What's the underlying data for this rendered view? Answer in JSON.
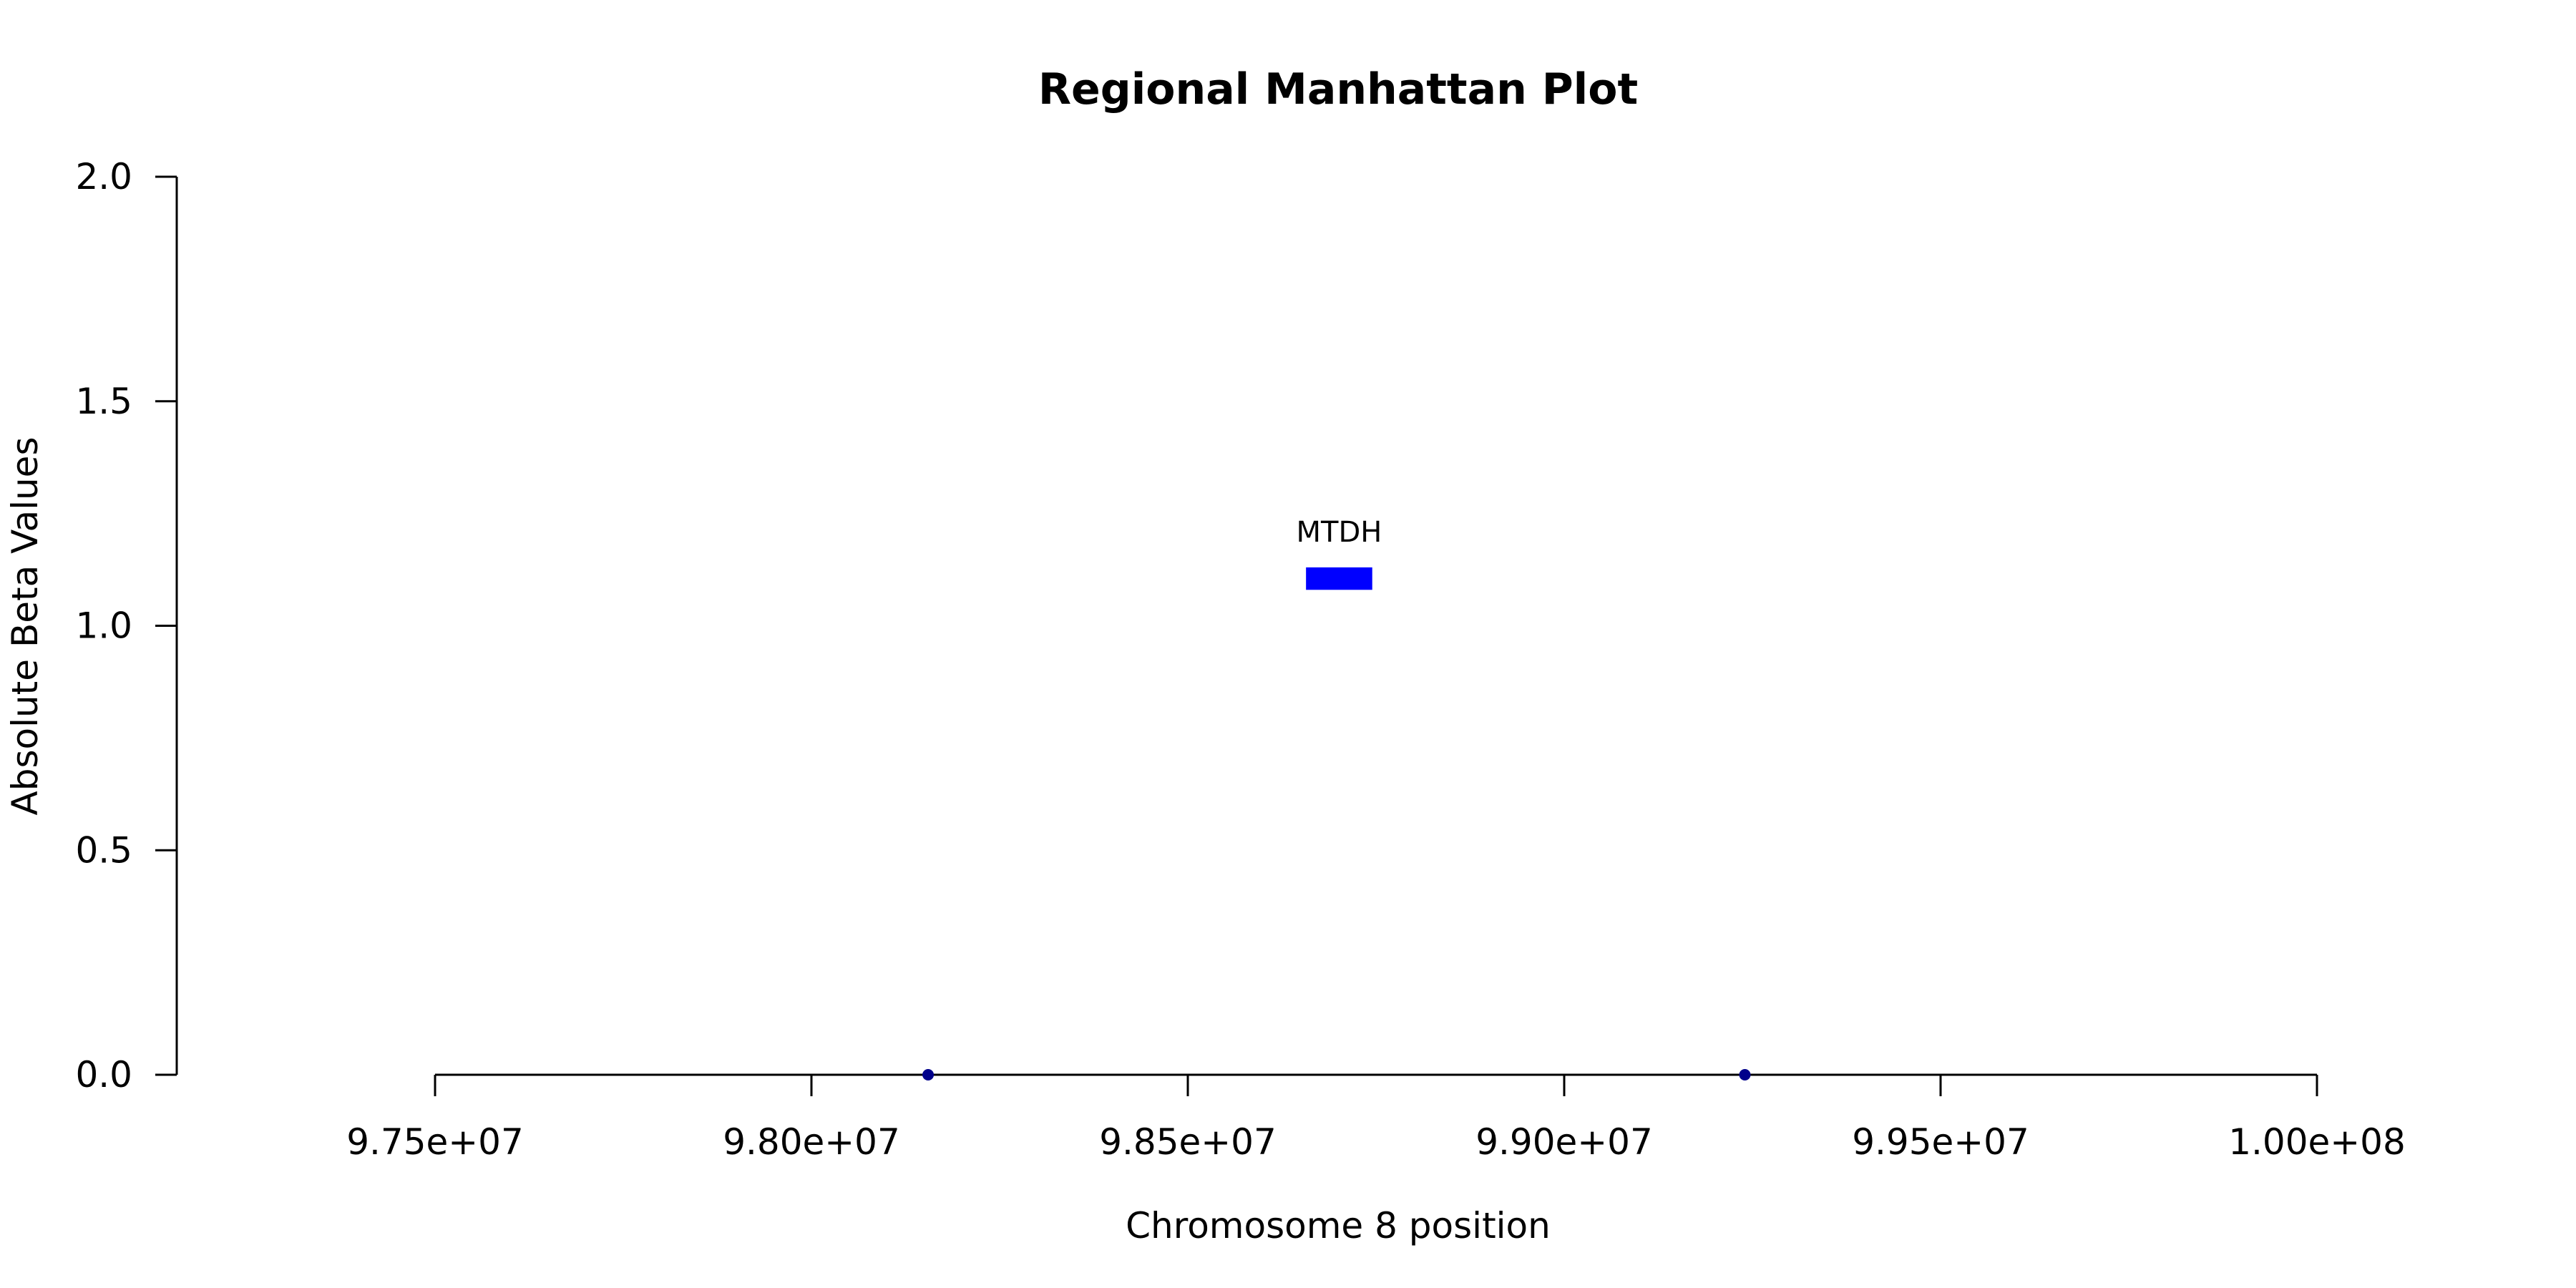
{
  "chart_data": {
    "type": "scatter",
    "title": "Regional Manhattan Plot",
    "xlabel": "Chromosome 8 position",
    "ylabel": "Absolute Beta Values",
    "xlim": [
      97500000,
      100000000
    ],
    "ylim": [
      0,
      2
    ],
    "x_ticks": [
      97500000,
      98000000,
      98500000,
      99000000,
      99500000,
      100000000
    ],
    "x_tick_labels": [
      "9.75e+07",
      "9.80e+07",
      "9.85e+07",
      "9.90e+07",
      "9.95e+07",
      "1.00e+08"
    ],
    "y_ticks": [
      0,
      0.5,
      1,
      1.5,
      2
    ],
    "y_tick_labels": [
      "0.0",
      "0.5",
      "1.0",
      "1.5",
      "2.0"
    ],
    "grid": false,
    "series": [
      {
        "points": [
          {
            "x": 98155000,
            "y": 0
          },
          {
            "x": 99240000,
            "y": 0
          }
        ],
        "color": "#00008b"
      }
    ],
    "genes": [
      {
        "name": "MTDH",
        "start": 98657000,
        "end": 98745000,
        "y": 1.08,
        "height": 0.05,
        "color": "#0000ff"
      }
    ]
  }
}
